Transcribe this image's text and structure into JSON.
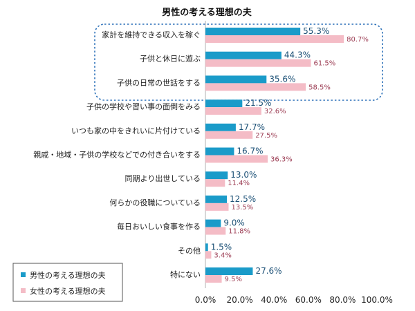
{
  "chart_data": {
    "type": "bar",
    "orientation": "horizontal",
    "title": "男性の考える理想の夫",
    "categories": [
      "家計を維持できる収入を稼ぐ",
      "子供と休日に遊ぶ",
      "子供の日常の世話をする",
      "子供の学校や習い事の面倒をみる",
      "いつも家の中をきれいに片付けている",
      "親戚・地域・子供の学校などでの付き合いをする",
      "同期より出世している",
      "何らかの役職についている",
      "毎日おいしい食事を作る",
      "その他",
      "特にない"
    ],
    "series": [
      {
        "name": "男性の考える理想の夫",
        "color": "#1a9bc9",
        "values": [
          55.3,
          44.3,
          35.6,
          21.5,
          17.7,
          16.7,
          13.0,
          12.5,
          9.0,
          1.5,
          27.6
        ],
        "labels": [
          "55.3%",
          "44.3%",
          "35.6%",
          "21.5%",
          "17.7%",
          "16.7%",
          "13.0%",
          "12.5%",
          "9.0%",
          "1.5%",
          "27.6%"
        ]
      },
      {
        "name": "女性の考える理想の夫",
        "color": "#f4bcc6",
        "values": [
          80.7,
          61.5,
          58.5,
          32.6,
          27.5,
          36.3,
          11.4,
          13.5,
          11.8,
          3.4,
          9.5
        ],
        "labels": [
          "80.7%",
          "61.5%",
          "58.5%",
          "32.6%",
          "27.5%",
          "36.3%",
          "11.4%",
          "13.5%",
          "11.8%",
          "3.4%",
          "9.5%"
        ]
      }
    ],
    "xlim": [
      0,
      100
    ],
    "xticks": [
      "0.0%",
      "20.0%",
      "40.0%",
      "60.0%",
      "80.0%",
      "100.0%"
    ],
    "legend_position": "bottom-left",
    "highlight": "top 3 categories enclosed by dotted rounded box",
    "highlight_color": "#2a6fb8",
    "grid": false
  }
}
